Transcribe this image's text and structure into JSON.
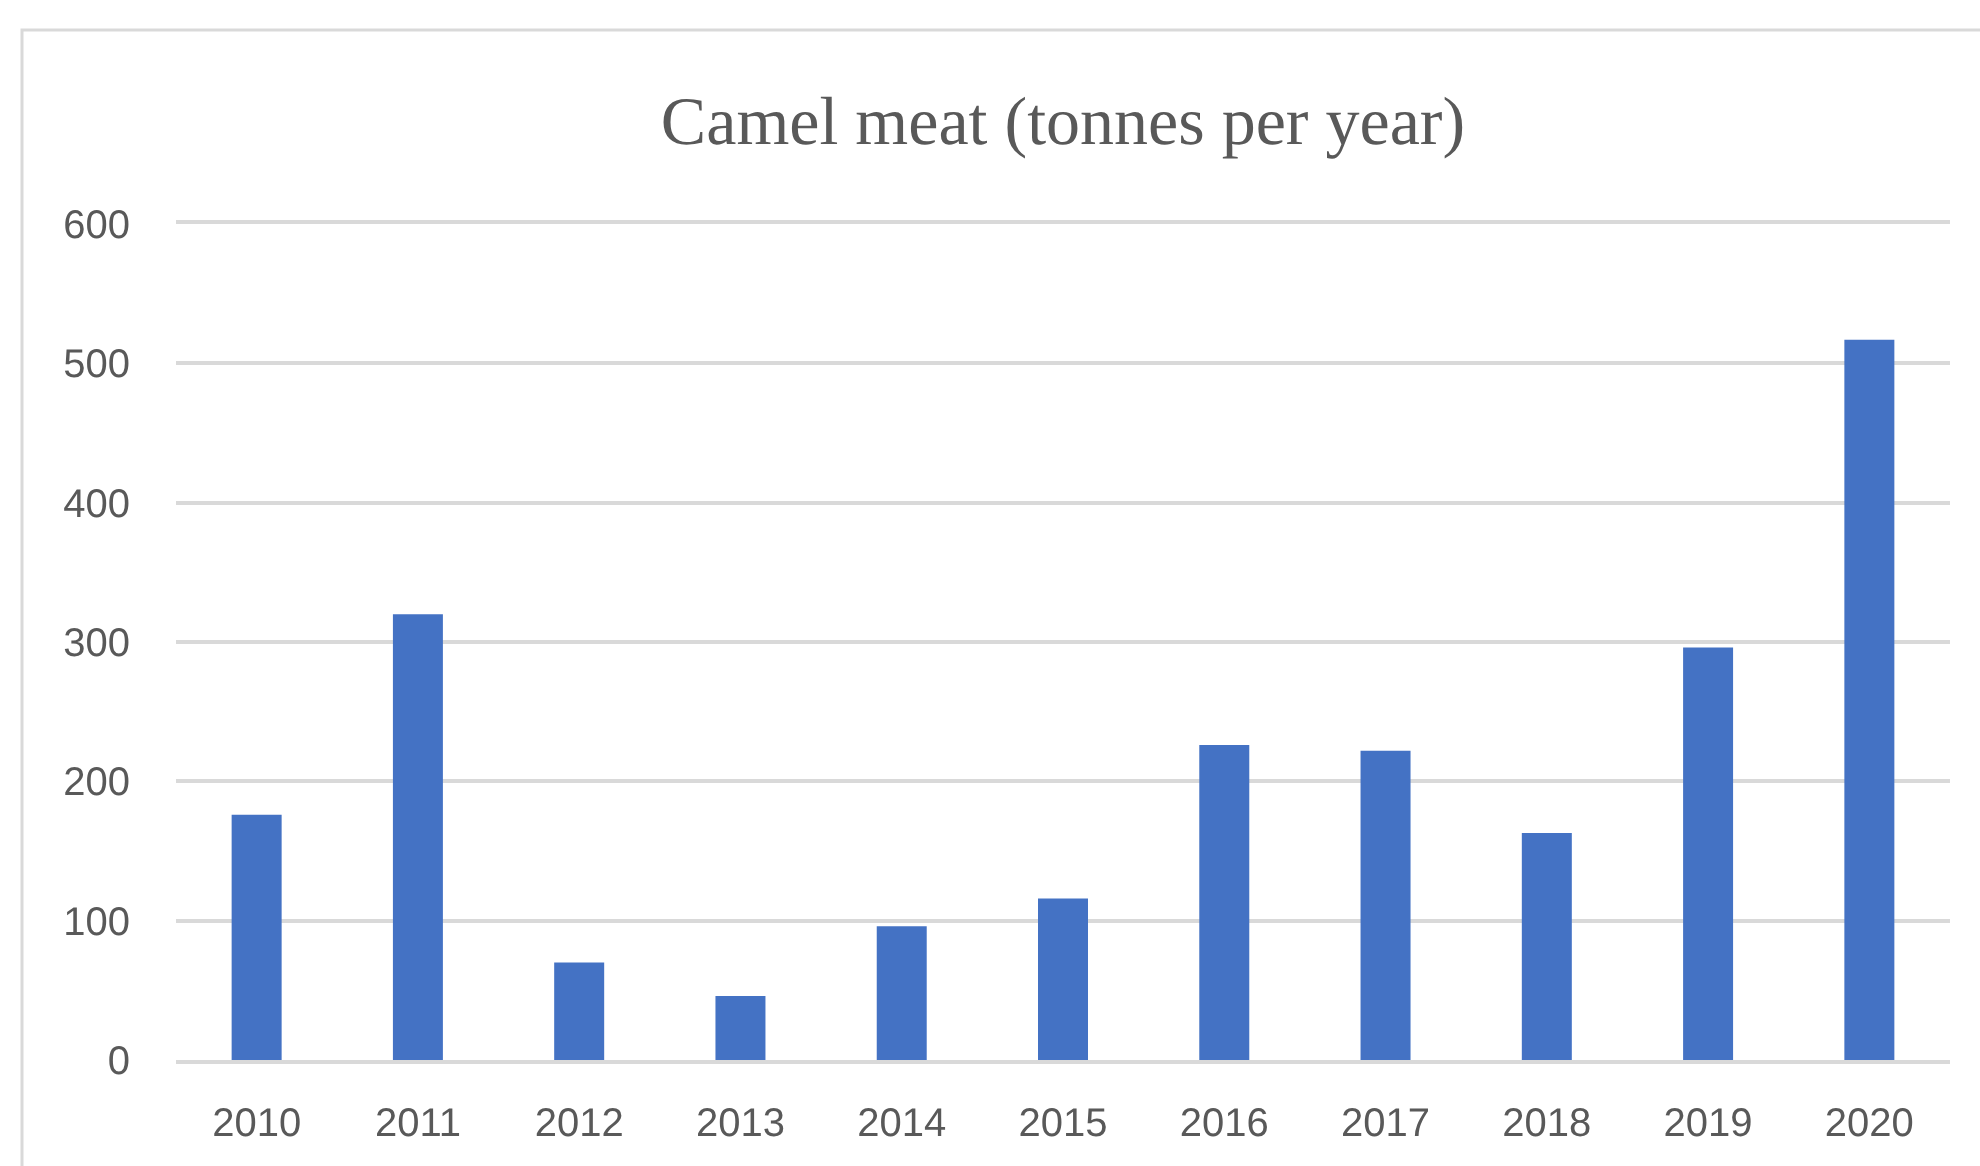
{
  "chart_data": {
    "type": "bar",
    "title": "Camel meat (tonnes per year)",
    "categories": [
      "2010",
      "2011",
      "2012",
      "2013",
      "2014",
      "2015",
      "2016",
      "2017",
      "2018",
      "2019",
      "2020"
    ],
    "values": [
      176,
      320,
      70,
      46,
      96,
      116,
      226,
      222,
      163,
      296,
      517
    ],
    "color": "#4472c4",
    "ylim": [
      0,
      600
    ],
    "yticks": [
      0,
      100,
      200,
      300,
      400,
      500,
      600
    ],
    "grid": "y"
  }
}
